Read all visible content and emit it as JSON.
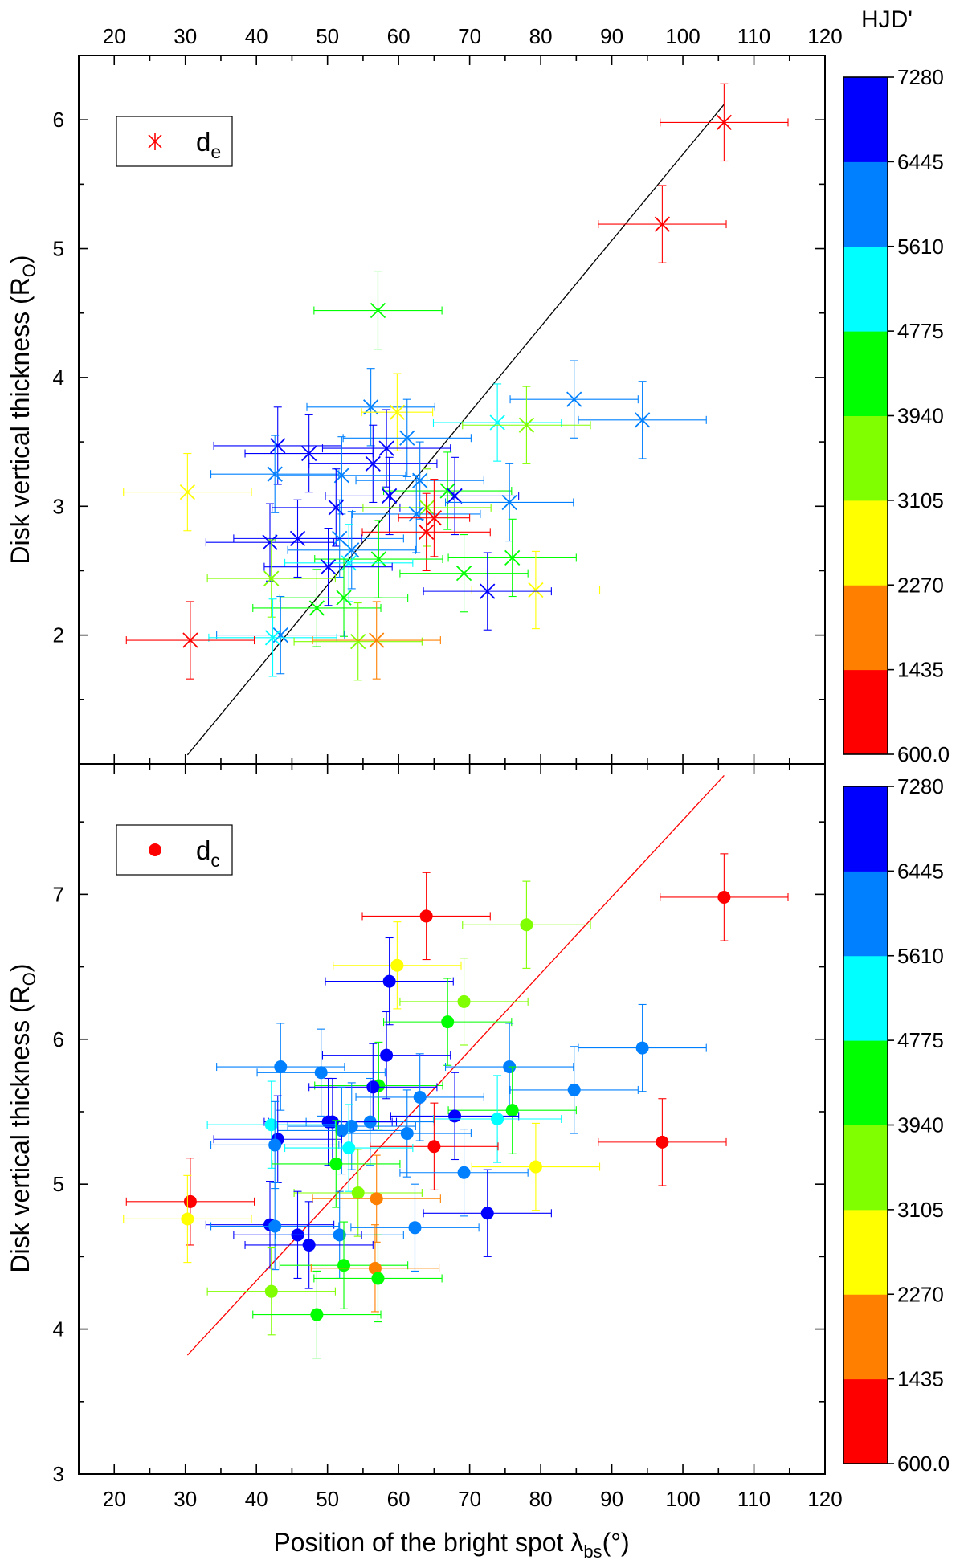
{
  "figure": {
    "x_title_main": "Position of the bright spot λ",
    "x_title_sub": "bs",
    "x_title_tail": "(°)",
    "colorbar_title": "HJD'"
  },
  "colorbar": {
    "ticks": [
      "600.0",
      "1435",
      "2270",
      "3105",
      "3940",
      "4775",
      "5610",
      "6445",
      "7280"
    ],
    "colors": [
      "#ff0000",
      "#ff8000",
      "#ffff00",
      "#80ff00",
      "#00ff00",
      "#00ffff",
      "#0080ff",
      "#0000ff"
    ]
  },
  "chart_data": [
    {
      "type": "scatter",
      "title": "",
      "xlabel": "Position of the bright spot λbs(°)",
      "ylabel": "Disk vertical thickness (RO)",
      "ylabel_main": "Disk vertical thickness (R",
      "ylabel_sub": "O",
      "ylabel_tail": ")",
      "xlim": [
        15,
        120
      ],
      "ylim": [
        1.0,
        6.5
      ],
      "xticks": [
        "20",
        "30",
        "40",
        "50",
        "60",
        "70",
        "80",
        "90",
        "100",
        "110",
        "120"
      ],
      "yticks": [
        "2",
        "3",
        "4",
        "5",
        "6"
      ],
      "marker": "x",
      "legend": {
        "label_main": "d",
        "label_sub": "e",
        "color": "#ff0000",
        "position": "top-left"
      },
      "fit_line": {
        "x": [
          30.3,
          105.8
        ],
        "y": [
          1.07,
          6.12
        ],
        "color": "#000000"
      },
      "points": [
        {
          "x": 105.8,
          "y": 5.98,
          "xerr": 9,
          "yerr": 0.3,
          "color": "#ff0000"
        },
        {
          "x": 97.1,
          "y": 5.19,
          "xerr": 9,
          "yerr": 0.3,
          "color": "#ff0000"
        },
        {
          "x": 57.1,
          "y": 4.52,
          "xerr": 9,
          "yerr": 0.3,
          "color": "#00ff00"
        },
        {
          "x": 84.7,
          "y": 3.83,
          "xerr": 9,
          "yerr": 0.3,
          "color": "#0080ff"
        },
        {
          "x": 56.1,
          "y": 3.77,
          "xerr": 9,
          "yerr": 0.3,
          "color": "#0080ff"
        },
        {
          "x": 59.8,
          "y": 3.73,
          "xerr": 5,
          "yerr": 0.3,
          "color": "#ffff00"
        },
        {
          "x": 94.3,
          "y": 3.67,
          "xerr": 9,
          "yerr": 0.3,
          "color": "#0080ff"
        },
        {
          "x": 73.9,
          "y": 3.65,
          "xerr": 9,
          "yerr": 0.3,
          "color": "#00ffff"
        },
        {
          "x": 78.0,
          "y": 3.63,
          "xerr": 9,
          "yerr": 0.3,
          "color": "#80ff00"
        },
        {
          "x": 61.2,
          "y": 3.53,
          "xerr": 9,
          "yerr": 0.3,
          "color": "#0080ff"
        },
        {
          "x": 43.0,
          "y": 3.47,
          "xerr": 9,
          "yerr": 0.3,
          "color": "#0000ff"
        },
        {
          "x": 58.3,
          "y": 3.45,
          "xerr": 9,
          "yerr": 0.3,
          "color": "#0000ff"
        },
        {
          "x": 47.4,
          "y": 3.41,
          "xerr": 9,
          "yerr": 0.3,
          "color": "#0000ff"
        },
        {
          "x": 56.4,
          "y": 3.33,
          "xerr": 9,
          "yerr": 0.3,
          "color": "#0000ff"
        },
        {
          "x": 42.6,
          "y": 3.25,
          "xerr": 9,
          "yerr": 0.3,
          "color": "#0080ff"
        },
        {
          "x": 52.0,
          "y": 3.24,
          "xerr": 9,
          "yerr": 0.3,
          "color": "#0080ff"
        },
        {
          "x": 63.0,
          "y": 3.2,
          "xerr": 9,
          "yerr": 0.3,
          "color": "#0080ff"
        },
        {
          "x": 66.9,
          "y": 3.12,
          "xerr": 9,
          "yerr": 0.3,
          "color": "#00ff00"
        },
        {
          "x": 30.3,
          "y": 3.11,
          "xerr": 9,
          "yerr": 0.3,
          "color": "#ffff00"
        },
        {
          "x": 58.7,
          "y": 3.08,
          "xerr": 9,
          "yerr": 0.3,
          "color": "#0000ff"
        },
        {
          "x": 67.9,
          "y": 3.08,
          "xerr": 9,
          "yerr": 0.3,
          "color": "#0000ff"
        },
        {
          "x": 75.6,
          "y": 3.03,
          "xerr": 9,
          "yerr": 0.3,
          "color": "#0080ff"
        },
        {
          "x": 51.2,
          "y": 2.99,
          "xerr": 9,
          "yerr": 0.3,
          "color": "#0000ff"
        },
        {
          "x": 64.0,
          "y": 2.99,
          "xerr": 9,
          "yerr": 0.3,
          "color": "#80ff00"
        },
        {
          "x": 62.5,
          "y": 2.94,
          "xerr": 9,
          "yerr": 0.3,
          "color": "#0080ff"
        },
        {
          "x": 65.0,
          "y": 2.91,
          "xerr": 5,
          "yerr": 0.3,
          "color": "#ff0000"
        },
        {
          "x": 63.9,
          "y": 2.8,
          "xerr": 9,
          "yerr": 0.3,
          "color": "#ff0000"
        },
        {
          "x": 51.7,
          "y": 2.75,
          "xerr": 9,
          "yerr": 0.3,
          "color": "#0080ff"
        },
        {
          "x": 45.8,
          "y": 2.75,
          "xerr": 9,
          "yerr": 0.3,
          "color": "#0000ff"
        },
        {
          "x": 41.9,
          "y": 2.72,
          "xerr": 9,
          "yerr": 0.3,
          "color": "#0000ff"
        },
        {
          "x": 53.4,
          "y": 2.66,
          "xerr": 9,
          "yerr": 0.3,
          "color": "#0080ff"
        },
        {
          "x": 76.0,
          "y": 2.6,
          "xerr": 9,
          "yerr": 0.3,
          "color": "#00ff00"
        },
        {
          "x": 57.2,
          "y": 2.59,
          "xerr": 9,
          "yerr": 0.3,
          "color": "#00ff00"
        },
        {
          "x": 53.0,
          "y": 2.56,
          "xerr": 9,
          "yerr": 0.3,
          "color": "#00ffff"
        },
        {
          "x": 50.1,
          "y": 2.53,
          "xerr": 9,
          "yerr": 0.3,
          "color": "#0000ff"
        },
        {
          "x": 69.2,
          "y": 2.48,
          "xerr": 9,
          "yerr": 0.3,
          "color": "#00ff00"
        },
        {
          "x": 42.1,
          "y": 2.44,
          "xerr": 9,
          "yerr": 0.3,
          "color": "#80ff00"
        },
        {
          "x": 79.3,
          "y": 2.35,
          "xerr": 9,
          "yerr": 0.3,
          "color": "#ffff00"
        },
        {
          "x": 72.5,
          "y": 2.34,
          "xerr": 9,
          "yerr": 0.3,
          "color": "#0000ff"
        },
        {
          "x": 52.3,
          "y": 2.29,
          "xerr": 9,
          "yerr": 0.3,
          "color": "#00ff00"
        },
        {
          "x": 48.5,
          "y": 2.21,
          "xerr": 9,
          "yerr": 0.3,
          "color": "#00ff00"
        },
        {
          "x": 43.4,
          "y": 2.0,
          "xerr": 9,
          "yerr": 0.3,
          "color": "#0080ff"
        },
        {
          "x": 42.3,
          "y": 1.98,
          "xerr": 9,
          "yerr": 0.3,
          "color": "#00ffff"
        },
        {
          "x": 30.7,
          "y": 1.96,
          "xerr": 9,
          "yerr": 0.3,
          "color": "#ff0000"
        },
        {
          "x": 54.3,
          "y": 1.95,
          "xerr": 9,
          "yerr": 0.3,
          "color": "#80ff00"
        },
        {
          "x": 56.9,
          "y": 1.96,
          "xerr": 9,
          "yerr": 0.3,
          "color": "#ff8000"
        }
      ]
    },
    {
      "type": "scatter",
      "title": "",
      "xlabel": "Position of the bright spot λbs(°)",
      "ylabel": "Disk vertical thickness (RO)",
      "ylabel_main": "Disk vertical thickness (R",
      "ylabel_sub": "O",
      "ylabel_tail": ")",
      "xlim": [
        15,
        120
      ],
      "ylim": [
        3.0,
        7.9
      ],
      "xticks": [
        "20",
        "30",
        "40",
        "50",
        "60",
        "70",
        "80",
        "90",
        "100",
        "110",
        "120"
      ],
      "yticks": [
        "3",
        "4",
        "5",
        "6",
        "7"
      ],
      "marker": "o",
      "legend": {
        "label_main": "d",
        "label_sub": "c",
        "color": "#ff0000",
        "position": "top-left"
      },
      "fit_line": {
        "x": [
          30.3,
          105.8
        ],
        "y": [
          3.82,
          7.82
        ],
        "color": "#ff0000"
      },
      "points": [
        {
          "x": 105.8,
          "y": 6.98,
          "xerr": 9,
          "yerr": 0.3,
          "color": "#ff0000"
        },
        {
          "x": 63.9,
          "y": 6.85,
          "xerr": 9,
          "yerr": 0.3,
          "color": "#ff0000"
        },
        {
          "x": 78.0,
          "y": 6.79,
          "xerr": 9,
          "yerr": 0.3,
          "color": "#80ff00"
        },
        {
          "x": 59.8,
          "y": 6.51,
          "xerr": 9,
          "yerr": 0.3,
          "color": "#ffff00"
        },
        {
          "x": 58.7,
          "y": 6.4,
          "xerr": 9,
          "yerr": 0.3,
          "color": "#0000ff"
        },
        {
          "x": 69.2,
          "y": 6.26,
          "xerr": 9,
          "yerr": 0.3,
          "color": "#80ff00"
        },
        {
          "x": 66.9,
          "y": 6.12,
          "xerr": 9,
          "yerr": 0.3,
          "color": "#00ff00"
        },
        {
          "x": 94.3,
          "y": 5.94,
          "xerr": 9,
          "yerr": 0.3,
          "color": "#0080ff"
        },
        {
          "x": 58.3,
          "y": 5.89,
          "xerr": 9,
          "yerr": 0.3,
          "color": "#0000ff"
        },
        {
          "x": 43.4,
          "y": 5.81,
          "xerr": 9,
          "yerr": 0.3,
          "color": "#0080ff"
        },
        {
          "x": 75.6,
          "y": 5.81,
          "xerr": 9,
          "yerr": 0.3,
          "color": "#0080ff"
        },
        {
          "x": 49.1,
          "y": 5.77,
          "xerr": 9,
          "yerr": 0.3,
          "color": "#0080ff"
        },
        {
          "x": 57.2,
          "y": 5.68,
          "xerr": 9,
          "yerr": 0.3,
          "color": "#00ff00"
        },
        {
          "x": 56.4,
          "y": 5.67,
          "xerr": 9,
          "yerr": 0.3,
          "color": "#0000ff"
        },
        {
          "x": 84.7,
          "y": 5.65,
          "xerr": 9,
          "yerr": 0.3,
          "color": "#0080ff"
        },
        {
          "x": 63.0,
          "y": 5.6,
          "xerr": 9,
          "yerr": 0.3,
          "color": "#0080ff"
        },
        {
          "x": 76.0,
          "y": 5.51,
          "xerr": 9,
          "yerr": 0.3,
          "color": "#00ff00"
        },
        {
          "x": 67.9,
          "y": 5.47,
          "xerr": 9,
          "yerr": 0.3,
          "color": "#0000ff"
        },
        {
          "x": 73.9,
          "y": 5.45,
          "xerr": 9,
          "yerr": 0.3,
          "color": "#00ffff"
        },
        {
          "x": 50.1,
          "y": 5.43,
          "xerr": 9,
          "yerr": 0.3,
          "color": "#0000ff"
        },
        {
          "x": 56.0,
          "y": 5.43,
          "xerr": 9,
          "yerr": 0.3,
          "color": "#0080ff"
        },
        {
          "x": 50.7,
          "y": 5.43,
          "xerr": 9,
          "yerr": 0.3,
          "color": "#0000ff"
        },
        {
          "x": 42.1,
          "y": 5.41,
          "xerr": 9,
          "yerr": 0.3,
          "color": "#00ffff"
        },
        {
          "x": 53.4,
          "y": 5.4,
          "xerr": 9,
          "yerr": 0.3,
          "color": "#0080ff"
        },
        {
          "x": 52.0,
          "y": 5.37,
          "xerr": 9,
          "yerr": 0.3,
          "color": "#0080ff"
        },
        {
          "x": 61.2,
          "y": 5.35,
          "xerr": 9,
          "yerr": 0.3,
          "color": "#0080ff"
        },
        {
          "x": 43.0,
          "y": 5.31,
          "xerr": 9,
          "yerr": 0.3,
          "color": "#0000ff"
        },
        {
          "x": 42.6,
          "y": 5.27,
          "xerr": 9,
          "yerr": 0.3,
          "color": "#0080ff"
        },
        {
          "x": 65.0,
          "y": 5.26,
          "xerr": 9,
          "yerr": 0.3,
          "color": "#ff0000"
        },
        {
          "x": 97.1,
          "y": 5.29,
          "xerr": 9,
          "yerr": 0.3,
          "color": "#ff0000"
        },
        {
          "x": 53.0,
          "y": 5.25,
          "xerr": 9,
          "yerr": 0.3,
          "color": "#00ffff"
        },
        {
          "x": 51.2,
          "y": 5.14,
          "xerr": 9,
          "yerr": 0.3,
          "color": "#00ff00"
        },
        {
          "x": 79.3,
          "y": 5.12,
          "xerr": 9,
          "yerr": 0.3,
          "color": "#ffff00"
        },
        {
          "x": 69.2,
          "y": 5.08,
          "xerr": 9,
          "yerr": 0.3,
          "color": "#0080ff"
        },
        {
          "x": 54.3,
          "y": 4.94,
          "xerr": 9,
          "yerr": 0.3,
          "color": "#80ff00"
        },
        {
          "x": 56.9,
          "y": 4.9,
          "xerr": 9,
          "yerr": 0.3,
          "color": "#ff8000"
        },
        {
          "x": 30.7,
          "y": 4.88,
          "xerr": 9,
          "yerr": 0.3,
          "color": "#ff0000"
        },
        {
          "x": 72.5,
          "y": 4.8,
          "xerr": 9,
          "yerr": 0.3,
          "color": "#0000ff"
        },
        {
          "x": 30.3,
          "y": 4.76,
          "xerr": 9,
          "yerr": 0.3,
          "color": "#ffff00"
        },
        {
          "x": 41.9,
          "y": 4.72,
          "xerr": 9,
          "yerr": 0.3,
          "color": "#0000ff"
        },
        {
          "x": 42.6,
          "y": 4.71,
          "xerr": 9,
          "yerr": 0.3,
          "color": "#0080ff"
        },
        {
          "x": 62.3,
          "y": 4.7,
          "xerr": 9,
          "yerr": 0.3,
          "color": "#0080ff"
        },
        {
          "x": 45.8,
          "y": 4.65,
          "xerr": 9,
          "yerr": 0.3,
          "color": "#0000ff"
        },
        {
          "x": 51.7,
          "y": 4.65,
          "xerr": 9,
          "yerr": 0.3,
          "color": "#0080ff"
        },
        {
          "x": 47.4,
          "y": 4.58,
          "xerr": 9,
          "yerr": 0.3,
          "color": "#0000ff"
        },
        {
          "x": 52.3,
          "y": 4.44,
          "xerr": 9,
          "yerr": 0.3,
          "color": "#00ff00"
        },
        {
          "x": 56.7,
          "y": 4.42,
          "xerr": 9,
          "yerr": 0.3,
          "color": "#ff8000"
        },
        {
          "x": 57.1,
          "y": 4.35,
          "xerr": 9,
          "yerr": 0.3,
          "color": "#00ff00"
        },
        {
          "x": 42.1,
          "y": 4.26,
          "xerr": 9,
          "yerr": 0.3,
          "color": "#80ff00"
        },
        {
          "x": 48.5,
          "y": 4.1,
          "xerr": 9,
          "yerr": 0.3,
          "color": "#00ff00"
        }
      ]
    }
  ]
}
